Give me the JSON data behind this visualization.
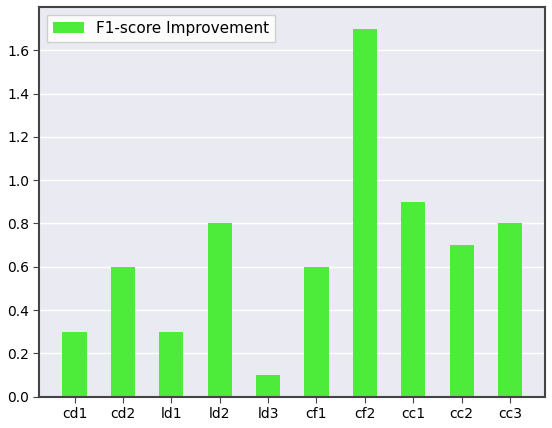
{
  "categories": [
    "cd1",
    "cd2",
    "ld1",
    "ld2",
    "ld3",
    "cf1",
    "cf2",
    "cc1",
    "cc2",
    "cc3"
  ],
  "values": [
    0.3,
    0.6,
    0.3,
    0.8,
    0.1,
    0.6,
    1.7,
    0.9,
    0.7,
    0.8
  ],
  "bar_color": "#4deb3a",
  "legend_label": "F1-score Improvement",
  "ylim": [
    0,
    1.8
  ],
  "yticks": [
    0.0,
    0.2,
    0.4,
    0.6,
    0.8,
    1.0,
    1.2,
    1.4,
    1.6
  ],
  "background_color": "#ffffff",
  "axes_facecolor": "#eaeaf2",
  "spine_color": "#444444",
  "bar_width": 0.5
}
